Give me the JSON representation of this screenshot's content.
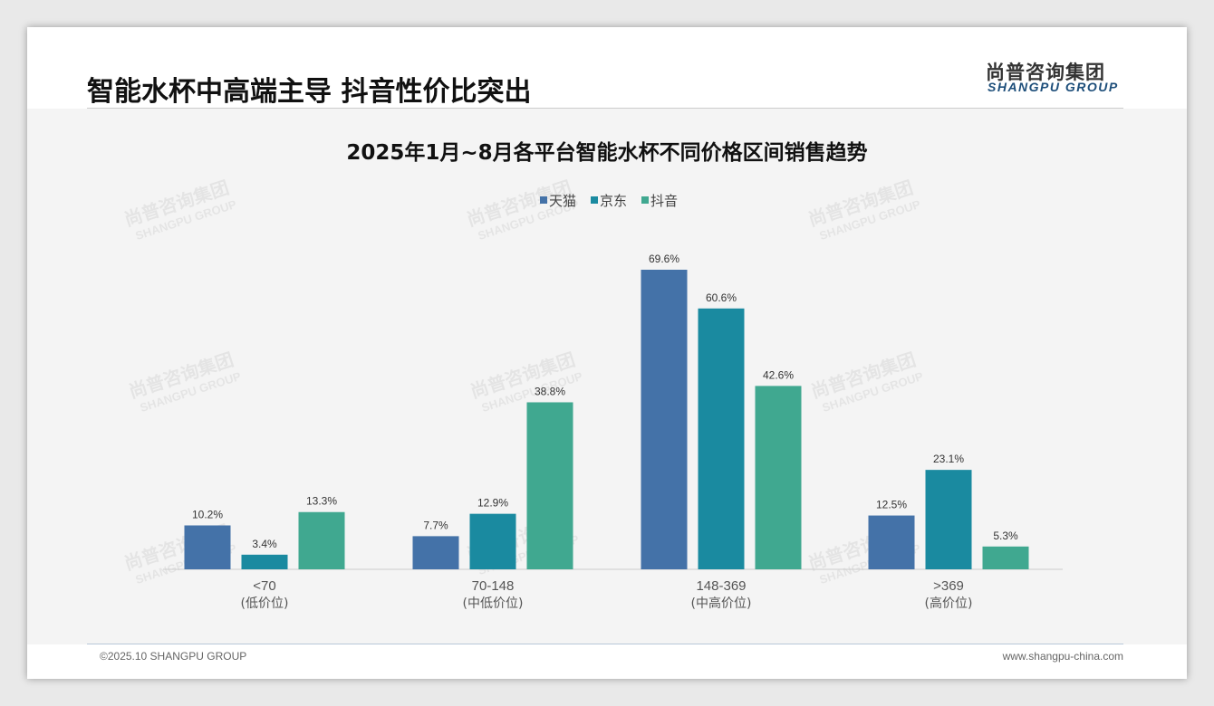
{
  "header": {
    "title": "智能水杯中高端主导 抖音性价比突出",
    "logo_cn": "尚普咨询集团",
    "logo_en": "SHANGPU GROUP"
  },
  "footer": {
    "copyright": "©2025.10 SHANGPU GROUP",
    "website": "www.shangpu-china.com"
  },
  "chart_data": {
    "type": "bar",
    "title": "2025年1月~8月各平台智能水杯不同价格区间销售趋势",
    "categories": [
      "<70",
      "70-148",
      "148-369",
      ">369"
    ],
    "category_sublabels": [
      "(低价位)",
      "(中低价位)",
      "(中高价位)",
      "(高价位)"
    ],
    "series": [
      {
        "name": "天猫",
        "color": "#4472a8",
        "values": [
          10.2,
          7.7,
          69.6,
          12.5
        ]
      },
      {
        "name": "京东",
        "color": "#1a8aa0",
        "values": [
          3.4,
          12.9,
          60.6,
          23.1
        ]
      },
      {
        "name": "抖音",
        "color": "#40a890",
        "values": [
          13.3,
          38.8,
          42.6,
          5.3
        ]
      }
    ],
    "unit": "%",
    "legend": "top",
    "grid": false,
    "ylim": [
      0,
      70
    ]
  }
}
